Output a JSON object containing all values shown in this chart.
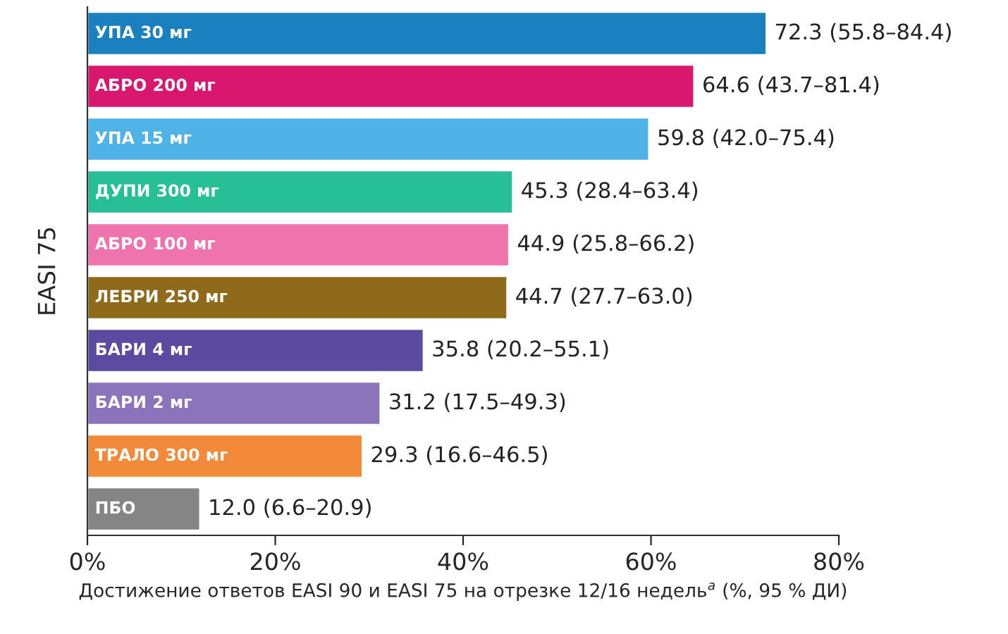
{
  "chart_data": {
    "type": "bar",
    "orientation": "horizontal",
    "categories": [
      "УПА 30 мг",
      "АБРО 200 мг",
      "УПА 15 мг",
      "ДУПИ 300 мг",
      "АБРО 100 мг",
      "ЛЕБРИ 250 мг",
      "БАРИ 4 мг",
      "БАРИ 2 мг",
      "ТРАЛО 300 мг",
      "ПБО"
    ],
    "values": [
      72.3,
      64.6,
      59.8,
      45.3,
      44.9,
      44.7,
      35.8,
      31.2,
      29.3,
      12.0
    ],
    "colors": [
      "#1a80c0",
      "#d9176e",
      "#4fb3e8",
      "#27bf96",
      "#ef74ae",
      "#8e6a1a",
      "#5a4aa0",
      "#8b74bb",
      "#f28a3a",
      "#858585"
    ],
    "value_labels": [
      "72.3 (55.8–84.4)",
      "64.6 (43.7–81.4)",
      "59.8 (42.0–75.4)",
      "45.3 (28.4–63.4)",
      "44.9 (25.8–66.2)",
      "44.7 (27.7–63.0)",
      "35.8 (20.2–55.1)",
      "31.2 (17.5–49.3)",
      "29.3 (16.6–46.5)",
      "12.0 (6.6–20.9)"
    ],
    "xlim": [
      0,
      80
    ],
    "xticks": [
      {
        "value": 0,
        "label": "0%"
      },
      {
        "value": 20,
        "label": "20%"
      },
      {
        "value": 40,
        "label": "40%"
      },
      {
        "value": 60,
        "label": "60%"
      },
      {
        "value": 80,
        "label": "80%"
      }
    ],
    "ylabel": "EASI 75",
    "xlabel": "Достижение ответов EASI 90 и EASI 75 на отрезке 12/16 недель$^{a}$ (%, 95 % ДИ)",
    "grid": false,
    "legend": false
  }
}
